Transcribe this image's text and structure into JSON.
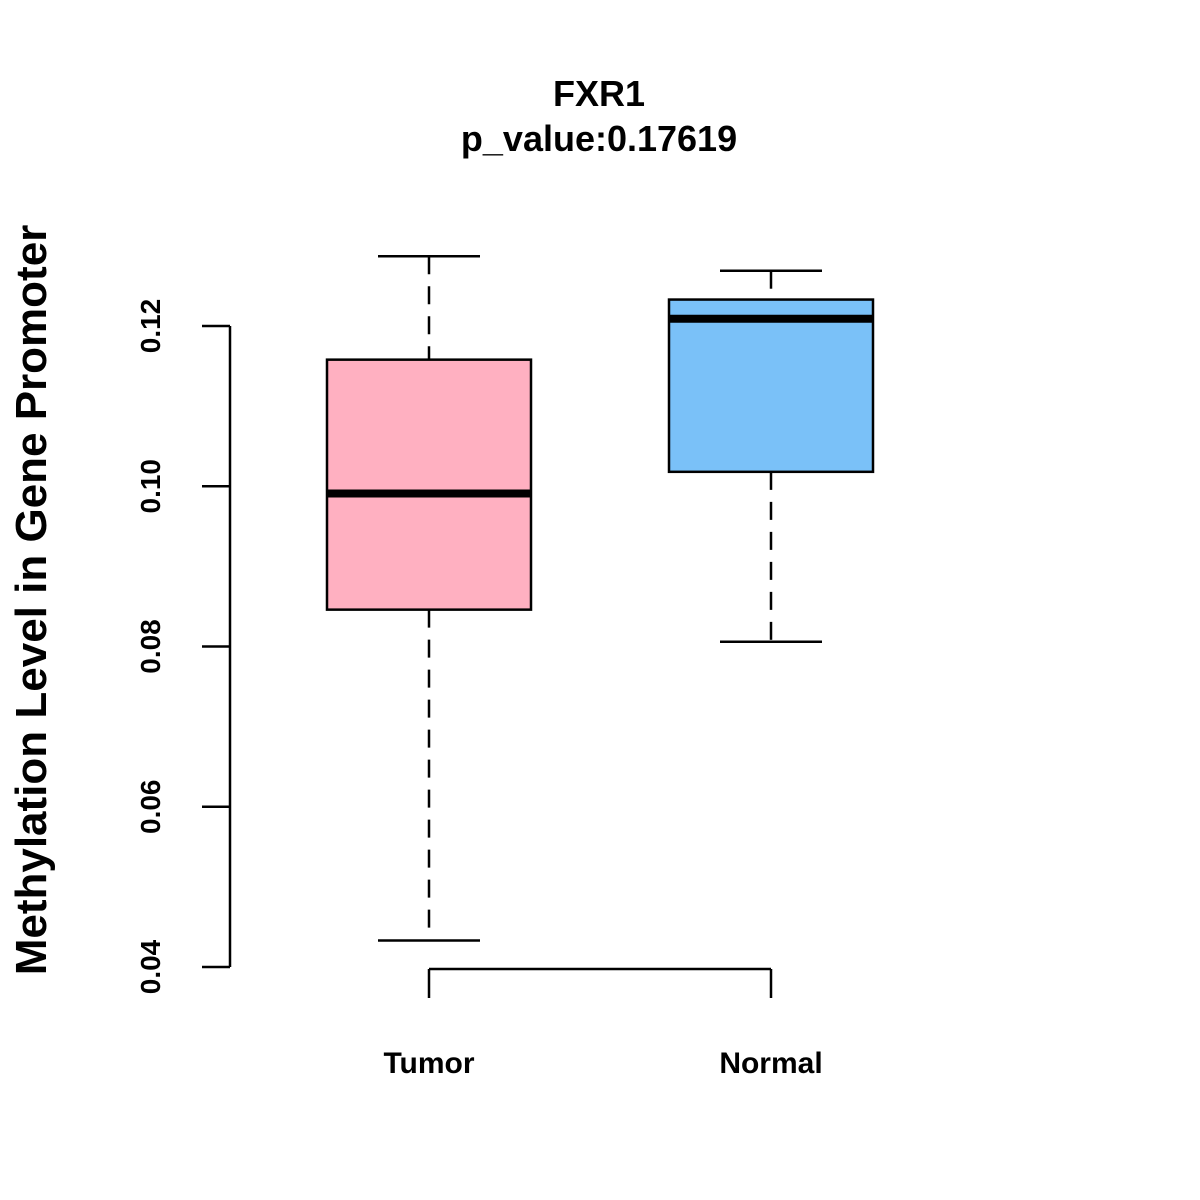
{
  "chart_data": {
    "type": "boxplot",
    "title": "FXR1",
    "subtitle": "p_value:0.17619",
    "xlabel": "",
    "ylabel": "Methylation Level in Gene Promoter",
    "ylim": [
      0.04,
      0.12
    ],
    "yticks": [
      0.04,
      0.06,
      0.08,
      0.1,
      0.12
    ],
    "ytick_labels": [
      "0.04",
      "0.06",
      "0.08",
      "0.10",
      "0.12"
    ],
    "categories": [
      "Tumor",
      "Normal"
    ],
    "boxes": [
      {
        "name": "Tumor",
        "whisker_low": 0.0433,
        "q1": 0.0846,
        "median": 0.0991,
        "q3": 0.1158,
        "whisker_high": 0.1287,
        "color": "#FFB0C1"
      },
      {
        "name": "Normal",
        "whisker_low": 0.0806,
        "q1": 0.1018,
        "median": 0.1209,
        "q3": 0.1233,
        "whisker_high": 0.1269,
        "color": "#7AC1F8"
      }
    ],
    "grid": false
  }
}
